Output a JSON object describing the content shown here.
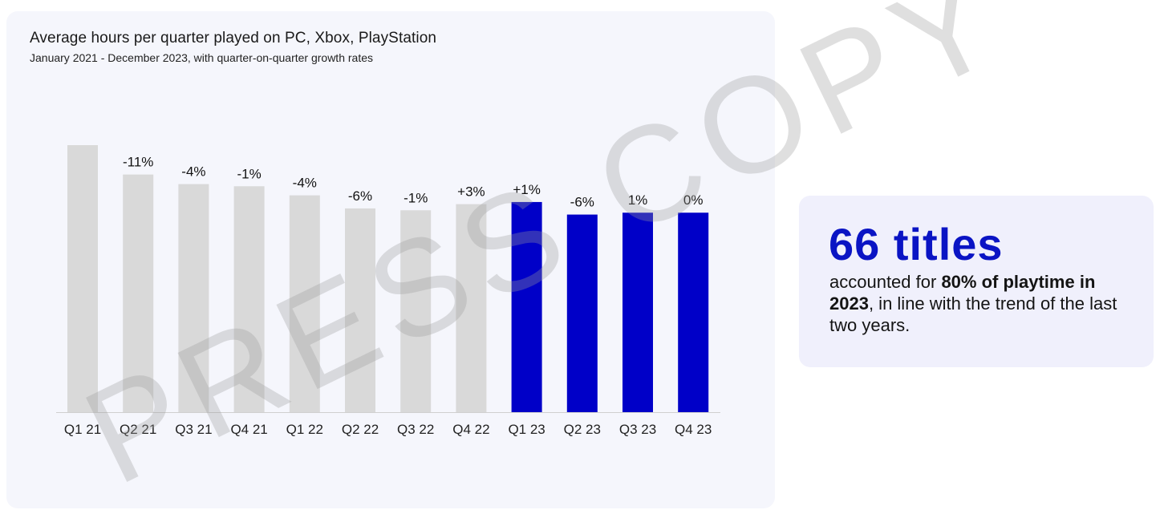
{
  "chart": {
    "title": "Average hours per quarter played on PC, Xbox, PlayStation",
    "subtitle": "January 2021 - December 2023, with quarter-on-quarter growth rates"
  },
  "chart_data": {
    "type": "bar",
    "title": "Average hours per quarter played on PC, Xbox, PlayStation",
    "subtitle": "January 2021 - December 2023, with quarter-on-quarter growth rates",
    "categories": [
      "Q1 21",
      "Q2 21",
      "Q3 21",
      "Q4 21",
      "Q1 22",
      "Q2 22",
      "Q3 22",
      "Q4 22",
      "Q1 23",
      "Q2 23",
      "Q3 23",
      "Q4 23"
    ],
    "values": [
      100,
      89,
      85.4,
      84.6,
      81.2,
      76.3,
      75.6,
      77.9,
      78.7,
      74.0,
      74.7,
      74.7
    ],
    "growth_labels": [
      "",
      "-11%",
      "-4%",
      "-1%",
      "-4%",
      "-6%",
      "-1%",
      "+3%",
      "+1%",
      "-6%",
      "1%",
      "0%"
    ],
    "colors": [
      "#d9d9d9",
      "#d9d9d9",
      "#d9d9d9",
      "#d9d9d9",
      "#d9d9d9",
      "#d9d9d9",
      "#d9d9d9",
      "#d9d9d9",
      "#0000c8",
      "#0000c8",
      "#0000c8",
      "#0000c8"
    ],
    "ylim": [
      0,
      100
    ],
    "grid": false,
    "legend": "none",
    "xlabel": "",
    "ylabel": ""
  },
  "callout": {
    "headline": "66 titles",
    "body_prefix": "accounted for ",
    "body_bold": "80% of playtime in 2023",
    "body_suffix": ", in line with the trend of the last two years."
  },
  "watermark": {
    "text": "PRESS COPY"
  },
  "colors": {
    "highlight": "#0000c8",
    "muted": "#d9d9d9",
    "accent_text": "#0a14c4",
    "card_bg": "#f5f6fc",
    "callout_bg": "#f0f0fc"
  }
}
